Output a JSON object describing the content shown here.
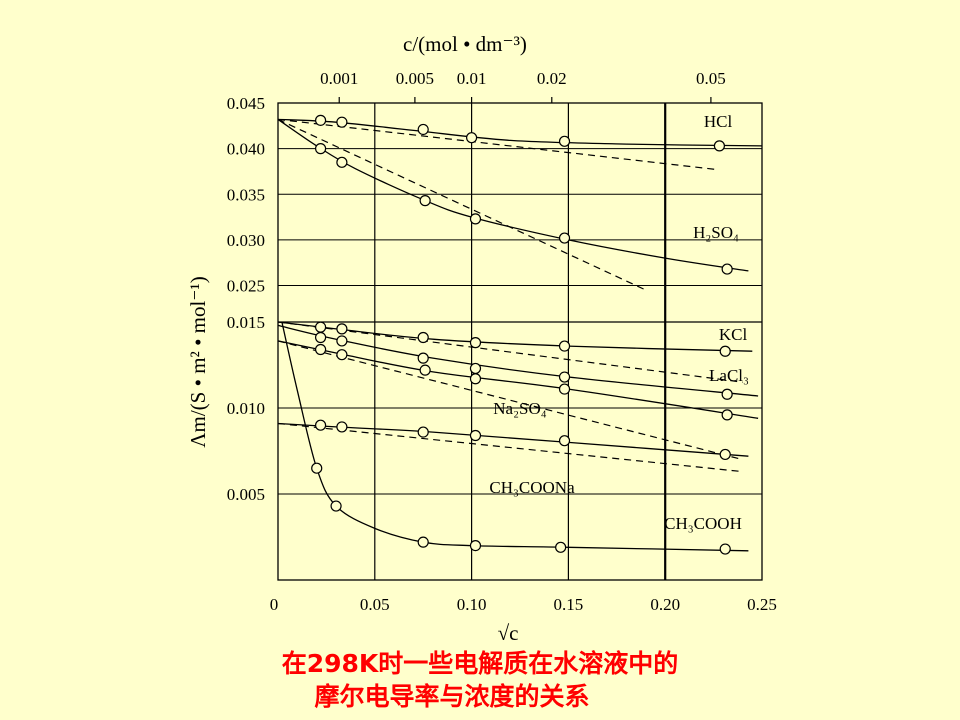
{
  "chart_data": {
    "type": "line",
    "top_axis_title": "c/(mol • dm⁻³)",
    "top_ticks": [
      {
        "value": 0.001,
        "label": "0.001"
      },
      {
        "value": 0.005,
        "label": "0.005"
      },
      {
        "value": 0.01,
        "label": "0.01"
      },
      {
        "value": 0.02,
        "label": "0.02"
      },
      {
        "value": 0.05,
        "label": "0.05"
      }
    ],
    "xlabel": "√c",
    "ylabel": "Λm/(S • m² • mol⁻¹)",
    "x_ticks": [
      {
        "value": 0,
        "label": "0"
      },
      {
        "value": 0.05,
        "label": "0.05"
      },
      {
        "value": 0.1,
        "label": "0.10"
      },
      {
        "value": 0.15,
        "label": "0.15"
      },
      {
        "value": 0.2,
        "label": "0.20"
      },
      {
        "value": 0.25,
        "label": "0.25"
      }
    ],
    "xlim": [
      0,
      0.25
    ],
    "upper_panel": {
      "ylim": [
        0.021,
        0.045
      ],
      "y_ticks": [
        {
          "value": 0.045,
          "label": "0.045"
        },
        {
          "value": 0.04,
          "label": "0.040"
        },
        {
          "value": 0.035,
          "label": "0.035"
        },
        {
          "value": 0.03,
          "label": "0.030"
        },
        {
          "value": 0.025,
          "label": "0.025"
        }
      ]
    },
    "lower_panel": {
      "ylim": [
        0,
        0.015
      ],
      "y_ticks": [
        {
          "value": 0.015,
          "label": "0.015"
        },
        {
          "value": 0.01,
          "label": "0.010"
        },
        {
          "value": 0.005,
          "label": "0.005"
        }
      ]
    },
    "series": [
      {
        "name": "HCl",
        "panel": "upper",
        "points": [
          [
            0.022,
            0.0431
          ],
          [
            0.033,
            0.0429
          ],
          [
            0.075,
            0.0421
          ],
          [
            0.1,
            0.0412
          ],
          [
            0.148,
            0.0408
          ],
          [
            0.228,
            0.0403
          ]
        ],
        "curve": [
          [
            0,
            0.0432
          ],
          [
            0.03,
            0.0429
          ],
          [
            0.07,
            0.042
          ],
          [
            0.12,
            0.0409
          ],
          [
            0.18,
            0.0405
          ],
          [
            0.25,
            0.0403
          ]
        ],
        "limit": [
          [
            0,
            0.0432
          ],
          [
            0.227,
            0.0377
          ]
        ]
      },
      {
        "name": "H₂SO₄",
        "panel": "upper",
        "points": [
          [
            0.022,
            0.04
          ],
          [
            0.033,
            0.0385
          ],
          [
            0.076,
            0.0343
          ],
          [
            0.102,
            0.0323
          ],
          [
            0.148,
            0.0302
          ],
          [
            0.232,
            0.0268
          ]
        ],
        "curve": [
          [
            0,
            0.0432
          ],
          [
            0.02,
            0.0403
          ],
          [
            0.04,
            0.0378
          ],
          [
            0.075,
            0.0344
          ],
          [
            0.1,
            0.0325
          ],
          [
            0.15,
            0.03
          ],
          [
            0.2,
            0.028
          ],
          [
            0.243,
            0.0266
          ]
        ],
        "limit": [
          [
            0,
            0.0432
          ],
          [
            0.19,
            0.0245
          ]
        ]
      },
      {
        "name": "KCl",
        "panel": "lower",
        "points": [
          [
            0.022,
            0.0147
          ],
          [
            0.033,
            0.0146
          ],
          [
            0.075,
            0.0141
          ],
          [
            0.102,
            0.0138
          ],
          [
            0.148,
            0.0136
          ],
          [
            0.231,
            0.0133
          ]
        ],
        "curve": [
          [
            0,
            0.015
          ],
          [
            0.03,
            0.0146
          ],
          [
            0.08,
            0.014
          ],
          [
            0.15,
            0.0136
          ],
          [
            0.245,
            0.0133
          ]
        ],
        "limit": [
          [
            0,
            0.015
          ],
          [
            0.24,
            0.0115
          ]
        ]
      },
      {
        "name": "LaCl₃",
        "panel": "lower",
        "points": [
          [
            0.022,
            0.0141
          ],
          [
            0.033,
            0.0139
          ],
          [
            0.075,
            0.0129
          ],
          [
            0.102,
            0.0123
          ],
          [
            0.148,
            0.0118
          ],
          [
            0.232,
            0.0108
          ]
        ],
        "curve": [
          [
            0,
            0.0148
          ],
          [
            0.03,
            0.014
          ],
          [
            0.08,
            0.0129
          ],
          [
            0.15,
            0.0118
          ],
          [
            0.248,
            0.0107
          ]
        ]
      },
      {
        "name": "Na₂SO₄",
        "panel": "lower",
        "points": [
          [
            0.022,
            0.0134
          ],
          [
            0.033,
            0.0131
          ],
          [
            0.076,
            0.0122
          ],
          [
            0.102,
            0.0117
          ],
          [
            0.148,
            0.0111
          ],
          [
            0.232,
            0.0096
          ]
        ],
        "curve": [
          [
            0,
            0.0139
          ],
          [
            0.03,
            0.0132
          ],
          [
            0.08,
            0.0121
          ],
          [
            0.15,
            0.0111
          ],
          [
            0.248,
            0.0094
          ]
        ],
        "limit": [
          [
            0,
            0.0139
          ],
          [
            0.24,
            0.007
          ]
        ]
      },
      {
        "name": "CH₃COONa",
        "panel": "lower",
        "points": [
          [
            0.022,
            0.009
          ],
          [
            0.033,
            0.0089
          ],
          [
            0.075,
            0.0086
          ],
          [
            0.102,
            0.0084
          ],
          [
            0.148,
            0.0081
          ],
          [
            0.231,
            0.0073
          ]
        ],
        "curve": [
          [
            0,
            0.0091
          ],
          [
            0.03,
            0.0089
          ],
          [
            0.08,
            0.0086
          ],
          [
            0.15,
            0.008
          ],
          [
            0.243,
            0.0072
          ]
        ],
        "limit": [
          [
            0,
            0.0091
          ],
          [
            0.24,
            0.0063
          ]
        ]
      },
      {
        "name": "CH₃COOH",
        "panel": "lower",
        "points": [
          [
            0.02,
            0.0065
          ],
          [
            0.03,
            0.0043
          ],
          [
            0.075,
            0.0022
          ],
          [
            0.102,
            0.002
          ],
          [
            0.146,
            0.0019
          ],
          [
            0.231,
            0.0018
          ]
        ],
        "curve": [
          [
            0.002,
            0.015
          ],
          [
            0.01,
            0.011
          ],
          [
            0.02,
            0.0065
          ],
          [
            0.03,
            0.0043
          ],
          [
            0.05,
            0.003
          ],
          [
            0.075,
            0.0022
          ],
          [
            0.1,
            0.002
          ],
          [
            0.15,
            0.0019
          ],
          [
            0.243,
            0.0017
          ]
        ]
      }
    ]
  },
  "caption": {
    "line1": "在298K时一些电解质在水溶液中的",
    "line2": "摩尔电导率与浓度的关系"
  }
}
